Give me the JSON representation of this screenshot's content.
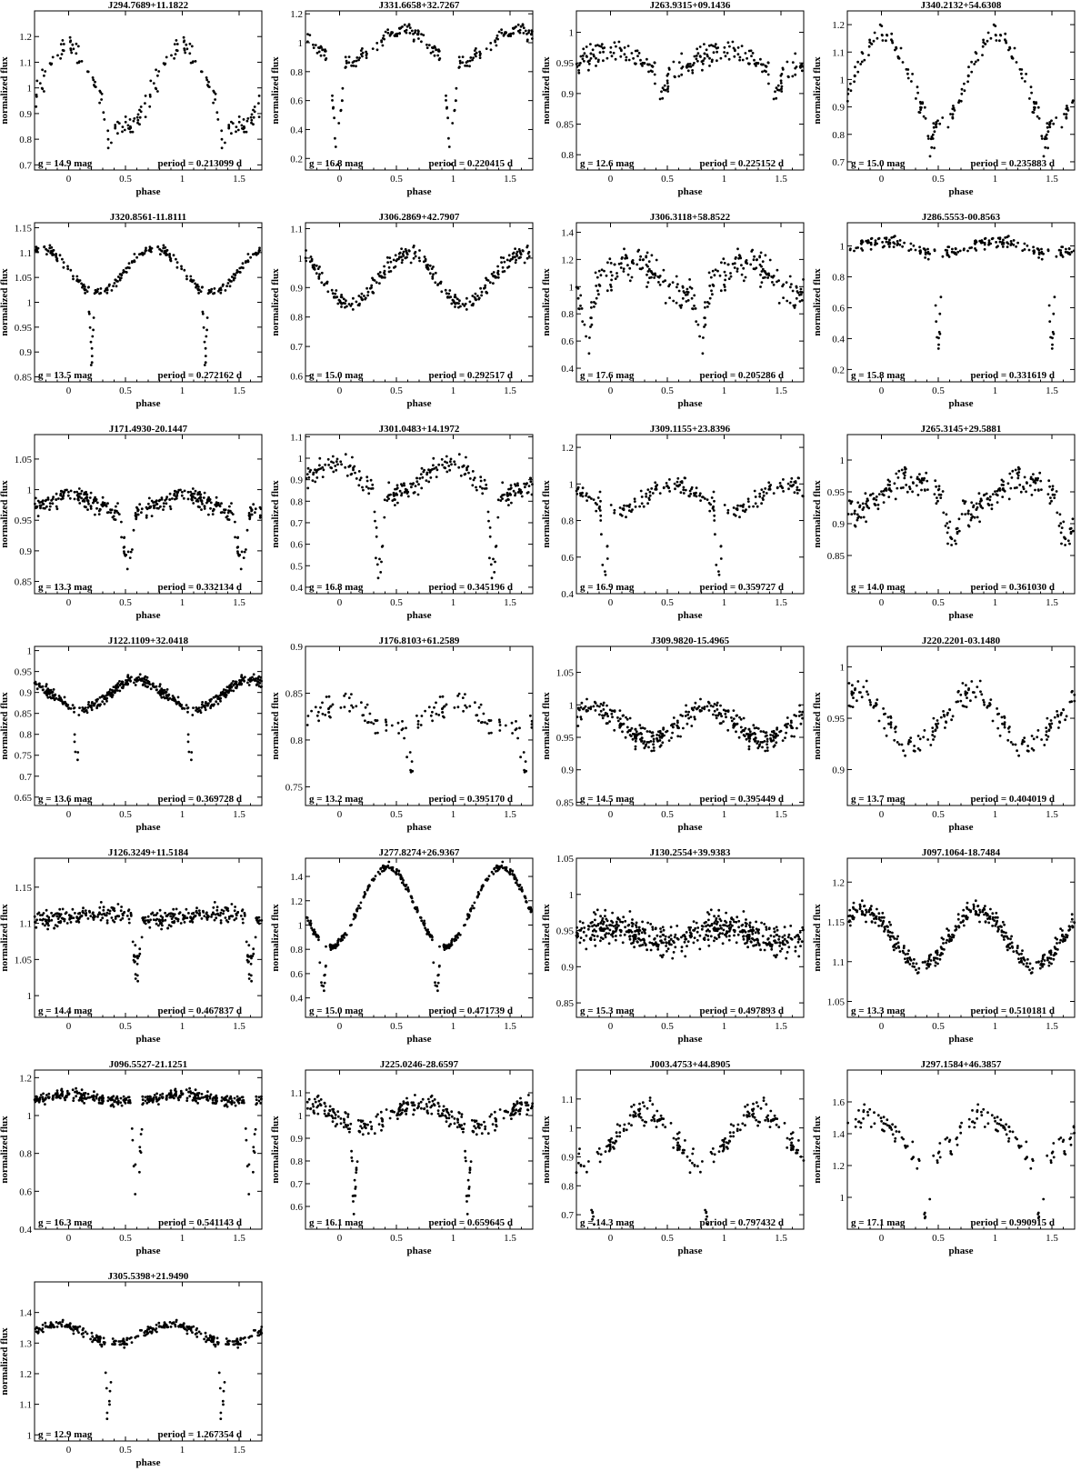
{
  "charts": [
    {
      "title": "J294.7689+11.1822",
      "g": "g = 14.9 mag",
      "period": "period = 0.213099 d",
      "ylim": [
        0.68,
        1.3
      ],
      "yticks": [
        0.7,
        0.8,
        0.9,
        1,
        1.1,
        1.2
      ]
    },
    {
      "title": "J331.6658+32.7267",
      "g": "g = 16.8 mag",
      "period": "period = 0.220415 d",
      "ylim": [
        0.12,
        1.22
      ],
      "yticks": [
        0.2,
        0.4,
        0.6,
        0.8,
        1,
        1.2
      ]
    },
    {
      "title": "J263.9315+09.1436",
      "g": "g = 12.6 mag",
      "period": "period = 0.225152 d",
      "ylim": [
        0.775,
        1.035
      ],
      "yticks": [
        0.8,
        0.85,
        0.9,
        0.95,
        1
      ]
    },
    {
      "title": "J340.2132+54.6308",
      "g": "g = 15.0 mag",
      "period": "period = 0.235883 d",
      "ylim": [
        0.67,
        1.25
      ],
      "yticks": [
        0.7,
        0.8,
        0.9,
        1,
        1.1,
        1.2
      ]
    },
    {
      "title": "J320.8561-11.8111",
      "g": "g = 13.5 mag",
      "period": "period = 0.272162 d",
      "ylim": [
        0.84,
        1.16
      ],
      "yticks": [
        0.85,
        0.9,
        0.95,
        1,
        1.05,
        1.1,
        1.15
      ]
    },
    {
      "title": "J306.2869+42.7907",
      "g": "g = 15.0 mag",
      "period": "period = 0.292517 d",
      "ylim": [
        0.58,
        1.12
      ],
      "yticks": [
        0.6,
        0.7,
        0.8,
        0.9,
        1,
        1.1
      ]
    },
    {
      "title": "J306.3118+58.8522",
      "g": "g = 17.6 mag",
      "period": "period = 0.205286 d",
      "ylim": [
        0.3,
        1.47
      ],
      "yticks": [
        0.4,
        0.6,
        0.8,
        1,
        1.2,
        1.4
      ]
    },
    {
      "title": "J286.5553-00.8563",
      "g": "g = 15.8 mag",
      "period": "period = 0.331619 d",
      "ylim": [
        0.12,
        1.15
      ],
      "yticks": [
        0.2,
        0.4,
        0.6,
        0.8,
        1
      ]
    },
    {
      "title": "J171.4930-20.1447",
      "g": "g = 13.3 mag",
      "period": "period = 0.332134 d",
      "ylim": [
        0.83,
        1.09
      ],
      "yticks": [
        0.85,
        0.9,
        0.95,
        1,
        1.05
      ]
    },
    {
      "title": "J301.0483+14.1972",
      "g": "g = 16.8 mag",
      "period": "period = 0.345196 d",
      "ylim": [
        0.37,
        1.11
      ],
      "yticks": [
        0.4,
        0.5,
        0.6,
        0.7,
        0.8,
        0.9,
        1,
        1.1
      ]
    },
    {
      "title": "J309.1155+23.8396",
      "g": "g = 16.9 mag",
      "period": "period = 0.359727 d",
      "ylim": [
        0.4,
        1.27
      ],
      "yticks": [
        0.4,
        0.6,
        0.8,
        1,
        1.2
      ]
    },
    {
      "title": "J265.3145+29.5881",
      "g": "g = 14.0 mag",
      "period": "period = 0.361030 d",
      "ylim": [
        0.79,
        1.04
      ],
      "yticks": [
        0.85,
        0.9,
        0.95,
        1
      ]
    },
    {
      "title": "J122.1109+32.0418",
      "g": "g = 13.6 mag",
      "period": "period = 0.369728 d",
      "ylim": [
        0.63,
        1.01
      ],
      "yticks": [
        0.65,
        0.7,
        0.75,
        0.8,
        0.85,
        0.9,
        0.95,
        1
      ]
    },
    {
      "title": "J176.8103+61.2589",
      "g": "g = 13.2 mag",
      "period": "period = 0.395170 d",
      "ylim": [
        0.73,
        0.9
      ],
      "yticks": [
        0.75,
        0.8,
        0.85,
        0.9
      ]
    },
    {
      "title": "J309.9820-15.4965",
      "g": "g = 14.5 mag",
      "period": "period = 0.395449 d",
      "ylim": [
        0.845,
        1.09
      ],
      "yticks": [
        0.85,
        0.9,
        0.95,
        1,
        1.05
      ]
    },
    {
      "title": "J220.2201-03.1480",
      "g": "g = 13.7 mag",
      "period": "period = 0.404019 d",
      "ylim": [
        0.865,
        1.02
      ],
      "yticks": [
        0.9,
        0.95,
        1
      ]
    },
    {
      "title": "J126.3249+11.5184",
      "g": "g = 14.4 mag",
      "period": "period = 0.467837 d",
      "ylim": [
        0.97,
        1.19
      ],
      "yticks": [
        1,
        1.05,
        1.1,
        1.15
      ]
    },
    {
      "title": "J277.8274+26.9367",
      "g": "g = 15.0 mag",
      "period": "period = 0.471739 d",
      "ylim": [
        0.24,
        1.55
      ],
      "yticks": [
        0.4,
        0.6,
        0.8,
        1,
        1.2,
        1.4
      ]
    },
    {
      "title": "J130.2554+39.9383",
      "g": "g = 15.3 mag",
      "period": "period = 0.497893 d",
      "ylim": [
        0.83,
        1.05
      ],
      "yticks": [
        0.85,
        0.9,
        0.95,
        1,
        1.05
      ]
    },
    {
      "title": "J097.1064-18.7484",
      "g": "g = 13.3 mag",
      "period": "period = 0.510181 d",
      "ylim": [
        1.03,
        1.23
      ],
      "yticks": [
        1.05,
        1.1,
        1.15,
        1.2
      ]
    },
    {
      "title": "J096.5527-21.1251",
      "g": "g = 16.3 mag",
      "period": "period = 0.541143 d",
      "ylim": [
        0.4,
        1.24
      ],
      "yticks": [
        0.4,
        0.6,
        0.8,
        1,
        1.2
      ]
    },
    {
      "title": "J225.0246-28.6597",
      "g": "g = 16.1 mag",
      "period": "period = 0.659645 d",
      "ylim": [
        0.5,
        1.2
      ],
      "yticks": [
        0.6,
        0.7,
        0.8,
        0.9,
        1,
        1.1
      ]
    },
    {
      "title": "J003.4753+44.8905",
      "g": "g = 14.3 mag",
      "period": "period = 0.797432 d",
      "ylim": [
        0.65,
        1.2
      ],
      "yticks": [
        0.7,
        0.8,
        0.9,
        1,
        1.1
      ]
    },
    {
      "title": "J297.1584+46.3857",
      "g": "g = 17.1 mag",
      "period": "period = 0.990915 d",
      "ylim": [
        0.8,
        1.8
      ],
      "yticks": [
        1,
        1.2,
        1.4,
        1.6
      ]
    },
    {
      "title": "J305.5398+21.9490",
      "g": "g = 12.9 mag",
      "period": "period = 1.267354 d",
      "ylim": [
        0.98,
        1.5
      ],
      "yticks": [
        1,
        1.1,
        1.2,
        1.3,
        1.4
      ]
    }
  ],
  "axes": {
    "xlabel": "phase",
    "ylabel": "normalized flux",
    "xlim": [
      -0.3,
      1.7
    ],
    "xticks": [
      0,
      0.5,
      1,
      1.5
    ]
  },
  "chart_data": [
    {
      "type": "scatter",
      "title": "J294.7689+11.1822",
      "xlabel": "phase",
      "ylabel": "normalized flux",
      "xlim": [
        -0.3,
        1.7
      ],
      "ylim": [
        0.68,
        1.3
      ],
      "shape": {
        "type": "sine",
        "mean": 1.0,
        "amp": 0.16,
        "peak": 0.0,
        "harm": 1,
        "noise": 0.04
      },
      "dips": [
        {
          "phase": 0.35,
          "depth": 0.14,
          "width": 0.03
        }
      ],
      "n": 90
    },
    {
      "type": "scatter",
      "title": "J331.6658+32.7267",
      "xlabel": "phase",
      "ylabel": "normalized flux",
      "xlim": [
        -0.3,
        1.7
      ],
      "ylim": [
        0.12,
        1.22
      ],
      "shape": {
        "type": "sine",
        "mean": 0.98,
        "amp": 0.11,
        "peak": 0.55,
        "harm": 1,
        "noise": 0.05
      },
      "dips": [
        {
          "phase": -0.02,
          "depth": 0.75,
          "width": 0.035
        }
      ],
      "n": 110
    },
    {
      "type": "scatter",
      "title": "J263.9315+09.1436",
      "xlabel": "phase",
      "ylabel": "normalized flux",
      "xlim": [
        -0.3,
        1.7
      ],
      "ylim": [
        0.775,
        1.035
      ],
      "shape": {
        "type": "sine",
        "mean": 0.955,
        "amp": 0.015,
        "peak": 0.0,
        "harm": 1,
        "noise": 0.018
      },
      "dips": [
        {
          "phase": 0.45,
          "depth": 0.06,
          "width": 0.04
        }
      ],
      "n": 120
    },
    {
      "type": "scatter",
      "title": "J340.2132+54.6308",
      "xlabel": "phase",
      "ylabel": "normalized flux",
      "xlim": [
        -0.3,
        1.7
      ],
      "ylim": [
        0.67,
        1.25
      ],
      "shape": {
        "type": "sine",
        "mean": 1.0,
        "amp": 0.17,
        "peak": 0.0,
        "harm": 1,
        "noise": 0.04
      },
      "dips": [
        {
          "phase": 0.43,
          "depth": 0.1,
          "width": 0.03
        }
      ],
      "n": 100
    },
    {
      "type": "scatter",
      "title": "J320.8561-11.8111",
      "xlabel": "phase",
      "ylabel": "normalized flux",
      "xlim": [
        -0.3,
        1.7
      ],
      "ylim": [
        0.84,
        1.16
      ],
      "shape": {
        "type": "sine",
        "mean": 1.065,
        "amp": 0.045,
        "peak": 0.75,
        "harm": 1,
        "noise": 0.01
      },
      "dips": [
        {
          "phase": 0.2,
          "depth": 0.15,
          "width": 0.015
        }
      ],
      "n": 130
    },
    {
      "type": "scatter",
      "title": "J306.2869+42.7907",
      "xlabel": "phase",
      "ylabel": "normalized flux",
      "xlim": [
        -0.3,
        1.7
      ],
      "ylim": [
        0.58,
        1.12
      ],
      "shape": {
        "type": "sine",
        "mean": 0.93,
        "amp": 0.085,
        "peak": 0.6,
        "harm": 1,
        "noise": 0.025
      },
      "dips": [],
      "n": 140
    },
    {
      "type": "scatter",
      "title": "J306.3118+58.8522",
      "xlabel": "phase",
      "ylabel": "normalized flux",
      "xlim": [
        -0.3,
        1.7
      ],
      "ylim": [
        0.3,
        1.47
      ],
      "shape": {
        "type": "sine",
        "mean": 1.05,
        "amp": 0.12,
        "peak": 0.2,
        "harm": 1,
        "noise": 0.12
      },
      "dips": [
        {
          "phase": -0.2,
          "depth": 0.35,
          "width": 0.04
        }
      ],
      "n": 140
    },
    {
      "type": "scatter",
      "title": "J286.5553-00.8563",
      "xlabel": "phase",
      "ylabel": "normalized flux",
      "xlim": [
        -0.3,
        1.7
      ],
      "ylim": [
        0.12,
        1.15
      ],
      "shape": {
        "type": "sine",
        "mean": 0.99,
        "amp": 0.04,
        "peak": 0.0,
        "harm": 1,
        "noise": 0.035
      },
      "dips": [
        {
          "phase": 0.5,
          "depth": 0.75,
          "width": 0.02
        }
      ],
      "n": 110
    },
    {
      "type": "scatter",
      "title": "J171.4930-20.1447",
      "xlabel": "phase",
      "ylabel": "normalized flux",
      "xlim": [
        -0.3,
        1.7
      ],
      "ylim": [
        0.83,
        1.09
      ],
      "shape": {
        "type": "sine",
        "mean": 0.975,
        "amp": 0.015,
        "peak": 0.0,
        "harm": 1,
        "noise": 0.015
      },
      "dips": [
        {
          "phase": 0.52,
          "depth": 0.09,
          "width": 0.04
        }
      ],
      "n": 170
    },
    {
      "type": "scatter",
      "title": "J301.0483+14.1972",
      "xlabel": "phase",
      "ylabel": "normalized flux",
      "xlim": [
        -0.3,
        1.7
      ],
      "ylim": [
        0.37,
        1.11
      ],
      "shape": {
        "type": "sine",
        "mean": 0.9,
        "amp": 0.07,
        "peak": 0.95,
        "harm": 1,
        "noise": 0.05
      },
      "dips": [
        {
          "phase": 0.35,
          "depth": 0.45,
          "width": 0.03
        }
      ],
      "n": 130
    },
    {
      "type": "scatter",
      "title": "J309.1155+23.8396",
      "xlabel": "phase",
      "ylabel": "normalized flux",
      "xlim": [
        -0.3,
        1.7
      ],
      "ylim": [
        0.4,
        1.27
      ],
      "shape": {
        "type": "sine",
        "mean": 0.93,
        "amp": 0.07,
        "peak": 0.55,
        "harm": 1,
        "noise": 0.05
      },
      "dips": [
        {
          "phase": -0.05,
          "depth": 0.45,
          "width": 0.025
        }
      ],
      "n": 110
    },
    {
      "type": "scatter",
      "title": "J265.3145+29.5881",
      "xlabel": "phase",
      "ylabel": "normalized flux",
      "xlim": [
        -0.3,
        1.7
      ],
      "ylim": [
        0.79,
        1.04
      ],
      "shape": {
        "type": "sine",
        "mean": 0.945,
        "amp": 0.025,
        "peak": 0.25,
        "harm": 1,
        "noise": 0.02
      },
      "dips": [
        {
          "phase": 0.62,
          "depth": 0.07,
          "width": 0.05
        }
      ],
      "n": 140
    },
    {
      "type": "scatter",
      "title": "J122.1109+32.0418",
      "xlabel": "phase",
      "ylabel": "normalized flux",
      "xlim": [
        -0.3,
        1.7
      ],
      "ylim": [
        0.63,
        1.01
      ],
      "shape": {
        "type": "sine",
        "mean": 0.895,
        "amp": 0.035,
        "peak": 0.6,
        "harm": 1,
        "noise": 0.012
      },
      "dips": [
        {
          "phase": 0.07,
          "depth": 0.22,
          "width": 0.012
        }
      ],
      "n": 220
    },
    {
      "type": "scatter",
      "title": "J176.8103+61.2589",
      "xlabel": "phase",
      "ylabel": "normalized flux",
      "xlim": [
        -0.3,
        1.7
      ],
      "ylim": [
        0.73,
        0.9
      ],
      "shape": {
        "type": "sine",
        "mean": 0.825,
        "amp": 0.015,
        "peak": 0.0,
        "harm": 1,
        "noise": 0.012
      },
      "dips": [
        {
          "phase": 0.63,
          "depth": 0.05,
          "width": 0.03
        }
      ],
      "n": 70
    },
    {
      "type": "scatter",
      "title": "J309.9820-15.4965",
      "xlabel": "phase",
      "ylabel": "normalized flux",
      "xlim": [
        -0.3,
        1.7
      ],
      "ylim": [
        0.845,
        1.09
      ],
      "shape": {
        "type": "sine",
        "mean": 0.97,
        "amp": 0.025,
        "peak": 0.85,
        "harm": 1,
        "noise": 0.018
      },
      "dips": [],
      "n": 180
    },
    {
      "type": "scatter",
      "title": "J220.2201-03.1480",
      "xlabel": "phase",
      "ylabel": "normalized flux",
      "xlim": [
        -0.3,
        1.7
      ],
      "ylim": [
        0.865,
        1.02
      ],
      "shape": {
        "type": "sine",
        "mean": 0.95,
        "amp": 0.025,
        "peak": 0.8,
        "harm": 1,
        "noise": 0.015
      },
      "dips": [],
      "n": 100
    },
    {
      "type": "scatter",
      "title": "J126.3249+11.5184",
      "xlabel": "phase",
      "ylabel": "normalized flux",
      "xlim": [
        -0.3,
        1.7
      ],
      "ylim": [
        0.97,
        1.19
      ],
      "shape": {
        "type": "sine",
        "mean": 1.11,
        "amp": 0.005,
        "peak": 0.3,
        "harm": 1,
        "noise": 0.012
      },
      "dips": [
        {
          "phase": 0.6,
          "depth": 0.09,
          "width": 0.03
        }
      ],
      "n": 190
    },
    {
      "type": "scatter",
      "title": "J277.8274+26.9367",
      "xlabel": "phase",
      "ylabel": "normalized flux",
      "xlim": [
        -0.3,
        1.7
      ],
      "ylim": [
        0.24,
        1.55
      ],
      "shape": {
        "type": "sine",
        "mean": 1.15,
        "amp": 0.33,
        "peak": 0.42,
        "harm": 1,
        "noise": 0.03
      },
      "dips": [
        {
          "phase": -0.15,
          "depth": 0.55,
          "width": 0.02
        }
      ],
      "n": 180
    },
    {
      "type": "scatter",
      "title": "J130.2554+39.9383",
      "xlabel": "phase",
      "ylabel": "normalized flux",
      "xlim": [
        -0.3,
        1.7
      ],
      "ylim": [
        0.83,
        1.05
      ],
      "shape": {
        "type": "sine",
        "mean": 0.945,
        "amp": 0.01,
        "peak": 0.0,
        "harm": 1,
        "noise": 0.02
      },
      "dips": [],
      "n": 260
    },
    {
      "type": "scatter",
      "title": "J097.1064-18.7484",
      "xlabel": "phase",
      "ylabel": "normalized flux",
      "xlim": [
        -0.3,
        1.7
      ],
      "ylim": [
        1.03,
        1.23
      ],
      "shape": {
        "type": "sine",
        "mean": 1.13,
        "amp": 0.035,
        "peak": 0.85,
        "harm": 1,
        "noise": 0.012
      },
      "dips": [],
      "n": 190
    },
    {
      "type": "scatter",
      "title": "J096.5527-21.1251",
      "xlabel": "phase",
      "ylabel": "normalized flux",
      "xlim": [
        -0.3,
        1.7
      ],
      "ylim": [
        0.4,
        1.24
      ],
      "shape": {
        "type": "sine",
        "mean": 1.09,
        "amp": 0.02,
        "peak": 0.0,
        "harm": 1,
        "noise": 0.03
      },
      "dips": [
        {
          "phase": 0.6,
          "depth": 0.55,
          "width": 0.03
        }
      ],
      "n": 190
    },
    {
      "type": "scatter",
      "title": "J225.0246-28.6597",
      "xlabel": "phase",
      "ylabel": "normalized flux",
      "xlim": [
        -0.3,
        1.7
      ],
      "ylim": [
        0.5,
        1.2
      ],
      "shape": {
        "type": "sine",
        "mean": 1.0,
        "amp": 0.05,
        "peak": 0.7,
        "harm": 1,
        "noise": 0.04
      },
      "dips": [
        {
          "phase": 0.13,
          "depth": 0.4,
          "width": 0.02
        }
      ],
      "n": 160
    },
    {
      "type": "scatter",
      "title": "J003.4753+44.8905",
      "xlabel": "phase",
      "ylabel": "normalized flux",
      "xlim": [
        -0.3,
        1.7
      ],
      "ylim": [
        0.65,
        1.2
      ],
      "shape": {
        "type": "sine",
        "mean": 0.97,
        "amp": 0.09,
        "peak": 0.3,
        "harm": 1,
        "noise": 0.04
      },
      "dips": [
        {
          "phase": -0.15,
          "depth": 0.25,
          "width": 0.02
        }
      ],
      "n": 120
    },
    {
      "type": "scatter",
      "title": "J297.1584+46.3857",
      "xlabel": "phase",
      "ylabel": "normalized flux",
      "xlim": [
        -0.3,
        1.7
      ],
      "ylim": [
        0.8,
        1.8
      ],
      "shape": {
        "type": "sine",
        "mean": 1.38,
        "amp": 0.15,
        "peak": -0.1,
        "harm": 1,
        "noise": 0.07
      },
      "dips": [
        {
          "phase": 0.4,
          "depth": 0.5,
          "width": 0.025
        }
      ],
      "n": 80
    },
    {
      "type": "scatter",
      "title": "J305.5398+21.9490",
      "xlabel": "phase",
      "ylabel": "normalized flux",
      "xlim": [
        -0.3,
        1.7
      ],
      "ylim": [
        0.98,
        1.5
      ],
      "shape": {
        "type": "sine",
        "mean": 1.33,
        "amp": 0.03,
        "peak": -0.1,
        "harm": 1,
        "noise": 0.015
      },
      "dips": [
        {
          "phase": 0.35,
          "depth": 0.3,
          "width": 0.02
        }
      ],
      "n": 150
    }
  ]
}
